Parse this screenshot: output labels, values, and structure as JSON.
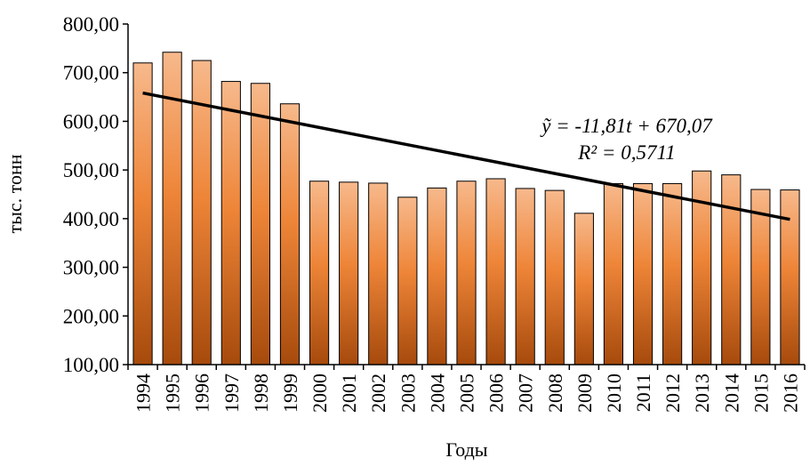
{
  "chart_data": {
    "type": "bar",
    "categories": [
      "1994",
      "1995",
      "1996",
      "1997",
      "1998",
      "1999",
      "2000",
      "2001",
      "2002",
      "2003",
      "2004",
      "2005",
      "2006",
      "2007",
      "2008",
      "2009",
      "2010",
      "2011",
      "2012",
      "2013",
      "2014",
      "2015",
      "2016"
    ],
    "values": [
      720,
      742,
      725,
      682,
      678,
      636,
      477,
      475,
      473,
      444,
      463,
      477,
      482,
      462,
      458,
      411,
      472,
      472,
      472,
      498,
      490,
      460,
      459
    ],
    "xlabel": "Годы",
    "ylabel": "тыс. тонн",
    "ylim": [
      100,
      800
    ],
    "y_ticks": [
      "100,00",
      "200,00",
      "300,00",
      "400,00",
      "500,00",
      "600,00",
      "700,00",
      "800,00"
    ],
    "grid": false,
    "bar_gradient": {
      "top": "#f7b98c",
      "middle": "#ee8538",
      "bottom": "#a64a0c"
    },
    "trendline": {
      "equation": "ỹ = -11,81t + 670,07",
      "r_squared": "R² = 0,5711",
      "slope": -11.81,
      "intercept": 670.07,
      "color": "#000000"
    }
  }
}
